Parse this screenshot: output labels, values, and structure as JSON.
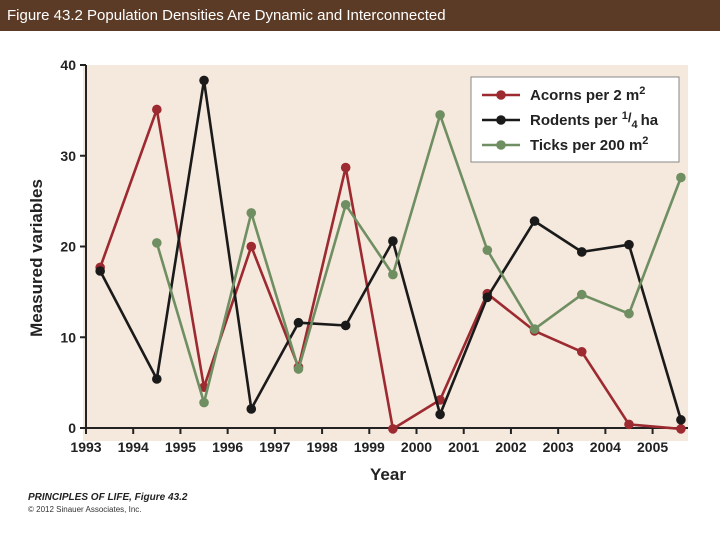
{
  "header": {
    "title": "Figure 43.2 Population Densities Are Dynamic and Interconnected"
  },
  "credit": {
    "line1": "PRINCIPLES OF LIFE, Figure 43.2",
    "line2": "© 2012 Sinauer Associates, Inc."
  },
  "colors": {
    "acorns": "#9c2a30",
    "rodents": "#1a1a1a",
    "ticks": "#6f8f62",
    "plot_bg": "#f5e8dc",
    "header_bg": "#5b3b26"
  },
  "chart_data": {
    "type": "line",
    "title": "",
    "xlabel": "Year",
    "ylabel": "Measured variables",
    "xlim": [
      1993,
      2005.75
    ],
    "ylim": [
      0,
      40
    ],
    "xticks": [
      1993,
      1994,
      1995,
      1996,
      1997,
      1998,
      1999,
      2000,
      2001,
      2002,
      2003,
      2004,
      2005
    ],
    "yticks": [
      0,
      10,
      20,
      30,
      40
    ],
    "grid": false,
    "legend_position": "top-right",
    "series": [
      {
        "name": "Acorns per 2 m²",
        "label_main": "Acorns per 2 m",
        "label_sup": "2",
        "label_post": "",
        "label_sub": "",
        "color": "#9c2a30",
        "points": [
          [
            1993.3,
            17.7
          ],
          [
            1994.5,
            35.1
          ],
          [
            1995.5,
            4.5
          ],
          [
            1996.5,
            20.0
          ],
          [
            1997.5,
            6.7
          ],
          [
            1998.5,
            28.7
          ],
          [
            1999.5,
            -0.1
          ],
          [
            2000.5,
            3.1
          ],
          [
            2001.5,
            14.8
          ],
          [
            2002.5,
            10.7
          ],
          [
            2003.5,
            8.4
          ],
          [
            2004.5,
            0.4
          ],
          [
            2005.6,
            -0.1
          ]
        ]
      },
      {
        "name": "Rodents per 1/4 ha",
        "label_main": "Rodents per ",
        "label_sup": "1",
        "label_post": "ha",
        "label_sub": "4",
        "color": "#1a1a1a",
        "points": [
          [
            1993.3,
            17.3
          ],
          [
            1994.5,
            5.4
          ],
          [
            1995.5,
            38.3
          ],
          [
            1996.5,
            2.1
          ],
          [
            1997.5,
            11.6
          ],
          [
            1998.5,
            11.3
          ],
          [
            1999.5,
            20.6
          ],
          [
            2000.5,
            1.5
          ],
          [
            2001.5,
            14.4
          ],
          [
            2002.5,
            22.8
          ],
          [
            2003.5,
            19.4
          ],
          [
            2004.5,
            20.2
          ],
          [
            2005.6,
            0.9
          ]
        ]
      },
      {
        "name": "Ticks per 200 m²",
        "label_main": "Ticks per 200 m",
        "label_sup": "2",
        "label_post": "",
        "label_sub": "",
        "color": "#6f8f62",
        "points": [
          [
            1994.5,
            20.4
          ],
          [
            1995.5,
            2.8
          ],
          [
            1996.5,
            23.7
          ],
          [
            1997.5,
            6.5
          ],
          [
            1998.5,
            24.6
          ],
          [
            1999.5,
            16.9
          ],
          [
            2000.5,
            34.5
          ],
          [
            2001.5,
            19.6
          ],
          [
            2002.5,
            10.9
          ],
          [
            2003.5,
            14.7
          ],
          [
            2004.5,
            12.6
          ],
          [
            2005.6,
            27.6
          ]
        ]
      }
    ]
  }
}
